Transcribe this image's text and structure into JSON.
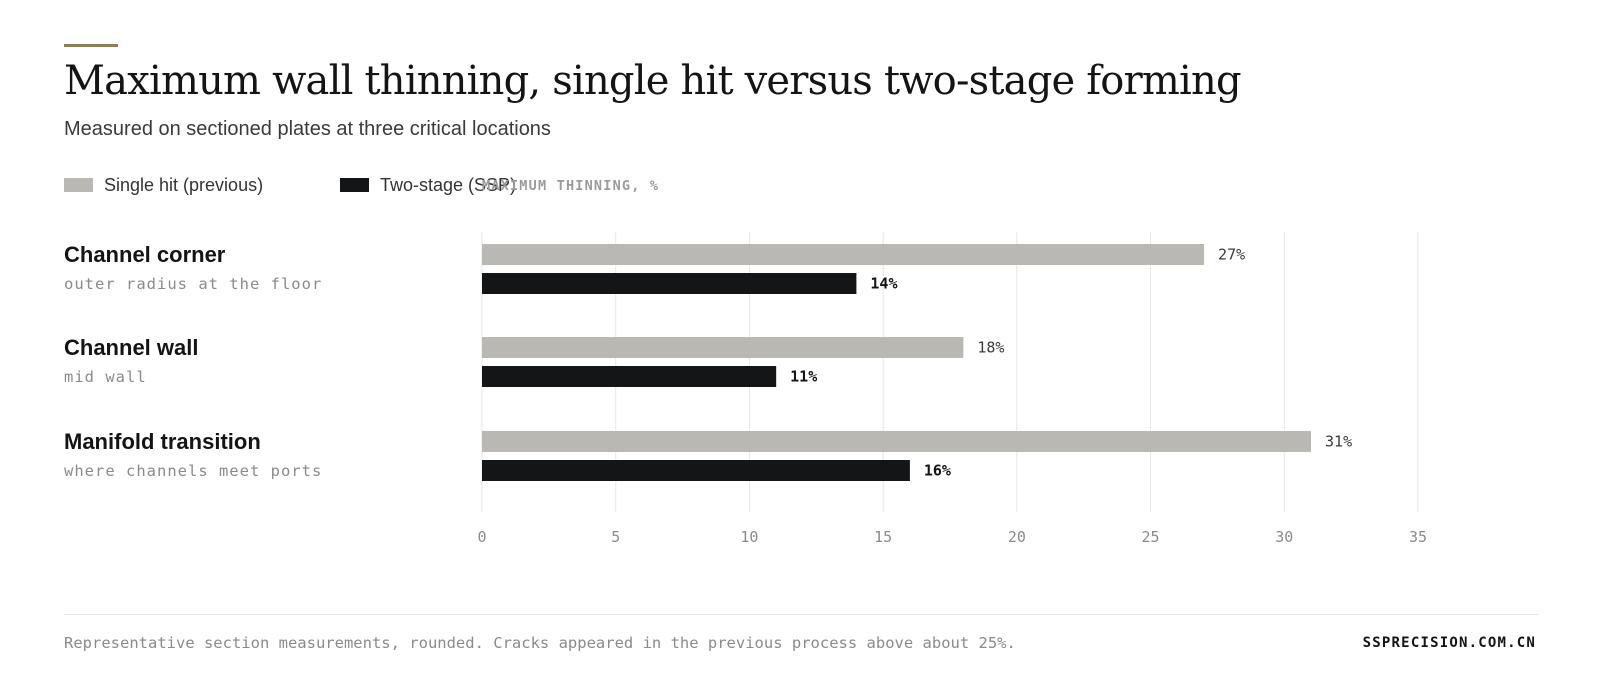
{
  "colors": {
    "accent": "#9c7b4a",
    "single_hit": "#b9b8b2",
    "two_stage": "#141516",
    "grid": "#e6e6e6",
    "muted_text": "#8a8a8a"
  },
  "header": {
    "title": "Maximum wall thinning, single hit versus two-stage forming",
    "subtitle": "Measured on sectioned plates at three critical locations"
  },
  "legend": {
    "items": [
      {
        "label": "Single hit (previous)",
        "color": "#b9b8b2"
      },
      {
        "label": "Two-stage (SSP)",
        "color": "#141516"
      }
    ]
  },
  "chart_data": {
    "type": "bar",
    "orientation": "horizontal",
    "title": "Maximum wall thinning, single hit versus two-stage forming",
    "subtitle": "Measured on sectioned plates at three critical locations",
    "xlabel": "MAXIMUM THINNING, %",
    "categories": [
      "Channel corner",
      "Channel wall",
      "Manifold transition"
    ],
    "category_notes": [
      "outer radius at the floor",
      "mid wall",
      "where channels meet ports"
    ],
    "series": [
      {
        "name": "Single hit (previous)",
        "values": [
          27,
          18,
          31
        ],
        "color": "#b9b8b2",
        "value_labels": [
          "27%",
          "18%",
          "31%"
        ]
      },
      {
        "name": "Two-stage (SSP)",
        "values": [
          14,
          11,
          16
        ],
        "color": "#141516",
        "value_labels": [
          "14%",
          "11%",
          "16%"
        ]
      }
    ],
    "xlim": [
      0,
      35
    ],
    "xticks": [
      0,
      5,
      10,
      15,
      20,
      25,
      30,
      35
    ],
    "xtick_labels": [
      "0",
      "5",
      "10",
      "15",
      "20",
      "25",
      "30",
      "35"
    ],
    "grid": true,
    "legend_position": "top-left"
  },
  "footer": {
    "note": "Representative section measurements, rounded. Cracks appeared in the previous process above about 25%.",
    "site": "SSPRECISION.COM.CN"
  }
}
